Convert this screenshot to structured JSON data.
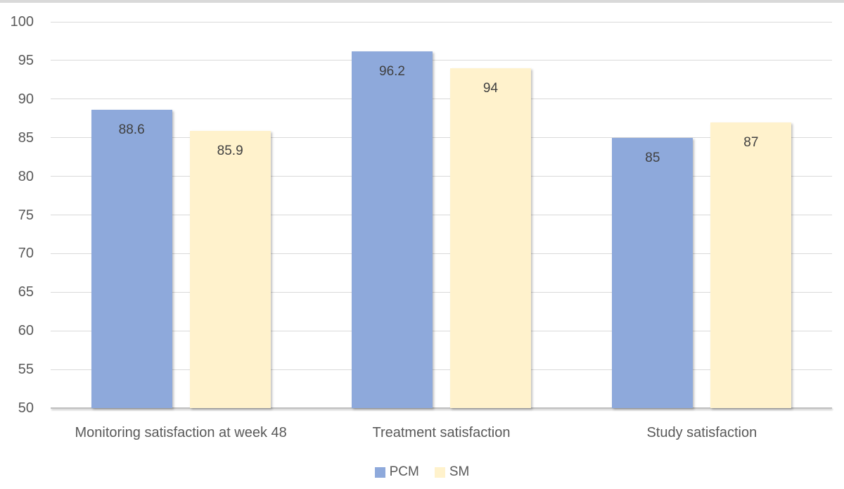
{
  "chart_data": {
    "type": "bar",
    "title": "",
    "xlabel": "",
    "ylabel": "",
    "categories": [
      "Monitoring satisfaction at week 48",
      "Treatment satisfaction",
      "Study satisfaction"
    ],
    "series": [
      {
        "name": "PCM",
        "color": "#8EA9DB",
        "values": [
          88.6,
          96.2,
          85
        ],
        "labels": [
          "88.6",
          "96.2",
          "85"
        ]
      },
      {
        "name": "SM",
        "color": "#FFF2CC",
        "values": [
          85.9,
          94,
          87
        ],
        "labels": [
          "85.9",
          "94",
          "87"
        ]
      }
    ],
    "y_axis": {
      "min": 50,
      "max": 100,
      "step": 5,
      "tick_labels": [
        "100",
        "95",
        "90",
        "85",
        "80",
        "75",
        "70",
        "65",
        "60",
        "55",
        "50"
      ]
    },
    "grid": true,
    "legend_position": "bottom",
    "data_labels_shown": true
  },
  "colors": {
    "background": "#FFFFFF",
    "top_border": "#D9D9D9",
    "gridline": "#D9D9D9",
    "axis_line": "#BFBFBF",
    "tick_text": "#595959",
    "category_text": "#595959",
    "legend_text": "#595959",
    "data_label_text": "#404040"
  }
}
